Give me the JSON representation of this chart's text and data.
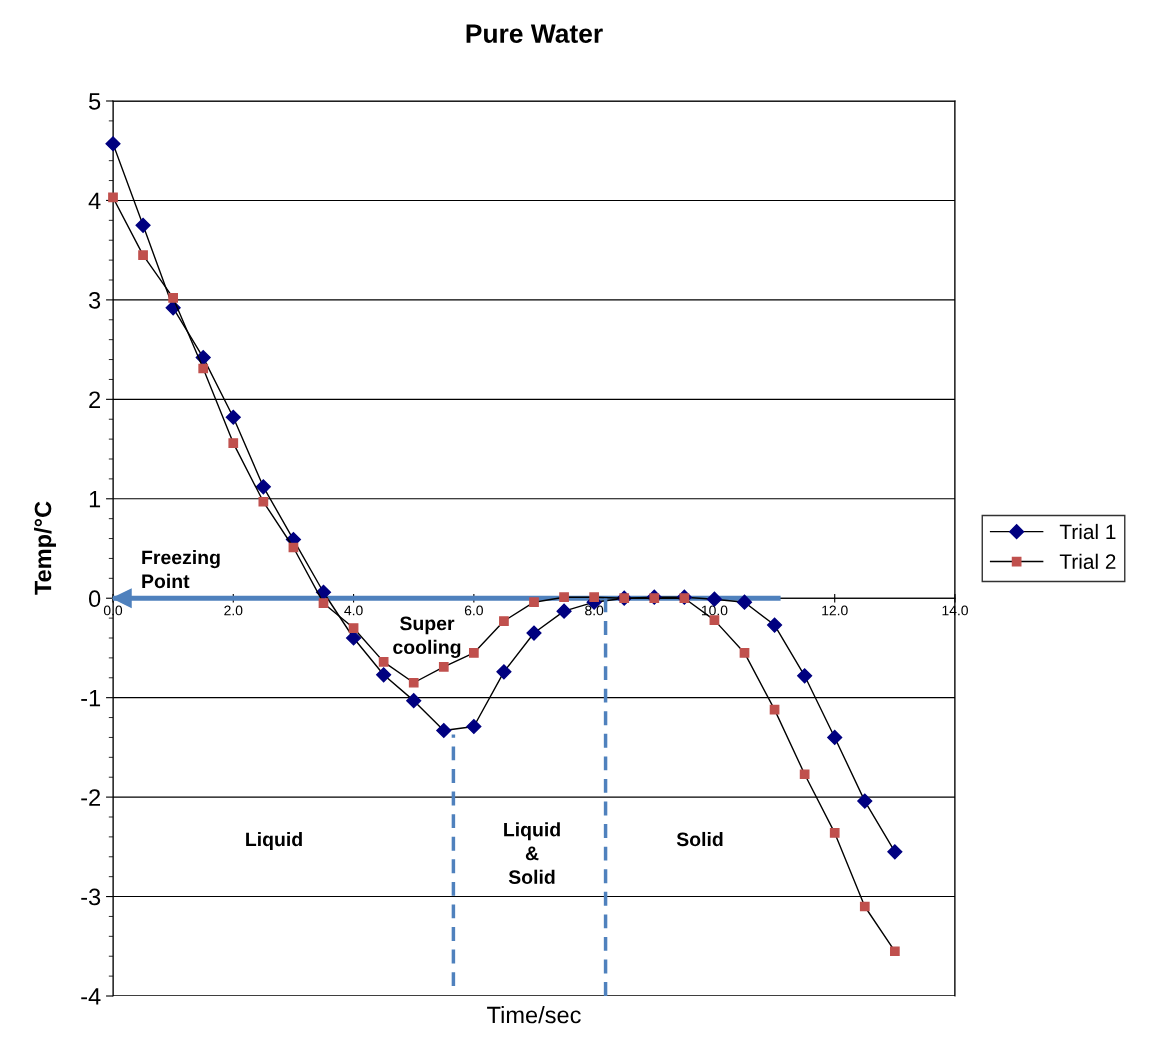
{
  "chart_data": {
    "type": "line",
    "title": "Pure Water",
    "xlabel": "Time/sec",
    "ylabel": "Temp/°C",
    "xlim": [
      0,
      14
    ],
    "ylim": [
      -4,
      5
    ],
    "xticks": [
      {
        "value": 0,
        "label": "0.0"
      },
      {
        "value": 2,
        "label": "2.0"
      },
      {
        "value": 4,
        "label": "4.0"
      },
      {
        "value": 6,
        "label": "6.0"
      },
      {
        "value": 8,
        "label": "8.0"
      },
      {
        "value": 10,
        "label": "10.0"
      },
      {
        "value": 12,
        "label": "12.0"
      },
      {
        "value": 14,
        "label": "14.0"
      }
    ],
    "yticks": [
      -4,
      -3,
      -2,
      -1,
      0,
      1,
      2,
      3,
      4,
      5
    ],
    "grid": "y",
    "legend": "right",
    "series": [
      {
        "name": "Trial 1",
        "color": "#000080",
        "marker": "diamond",
        "x": [
          0,
          0.5,
          1,
          1.5,
          2,
          2.5,
          3,
          3.5,
          4,
          4.5,
          5,
          5.5,
          6,
          6.5,
          7,
          7.5,
          8,
          8.5,
          9,
          9.5,
          10,
          10.5,
          11,
          11.5,
          12,
          12.5,
          13
        ],
        "values": [
          4.57,
          3.75,
          2.92,
          2.42,
          1.82,
          1.12,
          0.59,
          0.06,
          -0.4,
          -0.77,
          -1.03,
          -1.33,
          -1.29,
          -0.74,
          -0.35,
          -0.13,
          -0.04,
          0.0,
          0.01,
          0.01,
          -0.01,
          -0.04,
          -0.27,
          -0.78,
          -1.4,
          -2.04,
          -2.55
        ]
      },
      {
        "name": "Trial 2",
        "color": "#c0504d",
        "marker": "square",
        "x": [
          0,
          0.5,
          1,
          1.5,
          2,
          2.5,
          3,
          3.5,
          4,
          4.5,
          5,
          5.5,
          6,
          6.5,
          7,
          7.5,
          8,
          8.5,
          9,
          9.5,
          10,
          10.5,
          11,
          11.5,
          12,
          12.5,
          13
        ],
        "values": [
          4.03,
          3.45,
          3.02,
          2.31,
          1.56,
          0.97,
          0.51,
          -0.05,
          -0.3,
          -0.64,
          -0.85,
          -0.69,
          -0.55,
          -0.23,
          -0.04,
          0.01,
          0.01,
          0.0,
          0.0,
          0.0,
          -0.22,
          -0.55,
          -1.12,
          -1.77,
          -2.36,
          -3.1,
          -3.55
        ]
      },
      {
        "color": "#4f81bd",
        "marker": "none",
        "line_style": "dashed",
        "x": [
          5.66,
          5.66
        ],
        "values": [
          -3.9,
          -1.37
        ]
      },
      {
        "color": "#4f81bd",
        "marker": "none",
        "line_style": "dashed",
        "x": [
          8.19,
          8.19
        ],
        "values": [
          -4,
          0
        ]
      },
      {
        "color": "#4f81bd",
        "marker": "none",
        "line_style": "solid",
        "x": [
          11.1,
          0
        ],
        "values": [
          0,
          0
        ]
      }
    ],
    "annotations": [
      "Freezing\nPoint",
      "Super\ncooling",
      "Liquid",
      "Liquid\n&\nSolid",
      "Solid"
    ]
  }
}
